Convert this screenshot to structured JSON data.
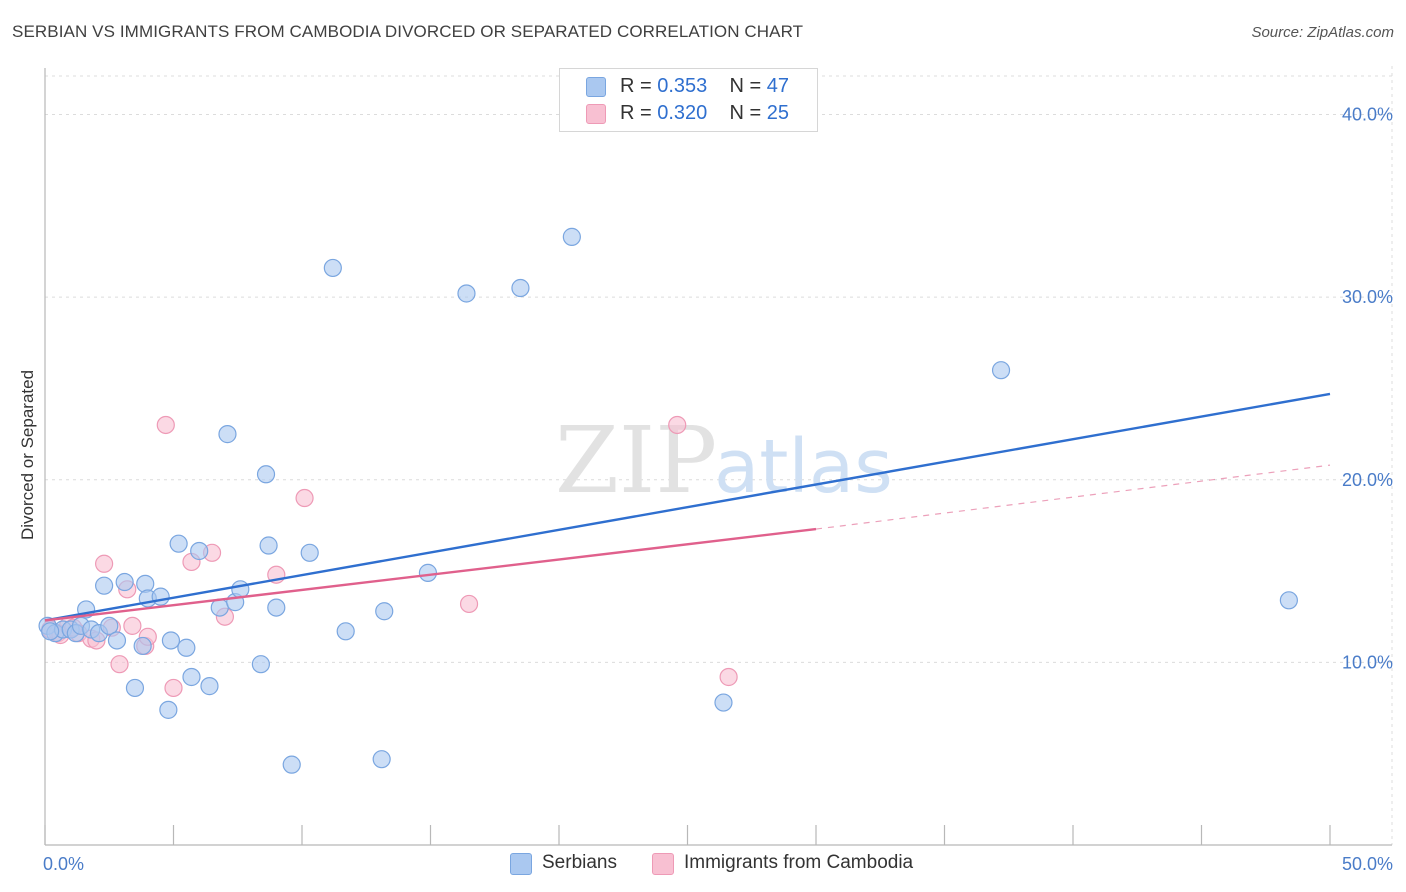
{
  "header": {
    "title": "SERBIAN VS IMMIGRANTS FROM CAMBODIA DIVORCED OR SEPARATED CORRELATION CHART",
    "source": "Source: ZipAtlas.com"
  },
  "watermark": {
    "zip": "ZIP",
    "atlas": "atlas"
  },
  "legend": {
    "rows": [
      {
        "r_label": "R =",
        "r_value": "0.353",
        "n_label": "N =",
        "n_value": "47"
      },
      {
        "r_label": "R =",
        "r_value": "0.320",
        "n_label": "N =",
        "n_value": "25"
      }
    ]
  },
  "bottom_legend": {
    "serbians": "Serbians",
    "cambodia": "Immigrants from Cambodia"
  },
  "colors": {
    "serbians_fill": "#aac8f0",
    "serbians_stroke": "#7aa6e0",
    "serbians_line": "#2f6fcf",
    "cambodia_fill": "#f8c0d2",
    "cambodia_stroke": "#ee9ab6",
    "cambodia_line": "#e0608c",
    "tick_text": "#4a7cc8",
    "grid": "#dcdcdc"
  },
  "chart_data": {
    "type": "scatter",
    "title": "SERBIAN VS IMMIGRANTS FROM CAMBODIA DIVORCED OR SEPARATED CORRELATION CHART",
    "xlabel": "",
    "ylabel": "Divorced or Separated",
    "xlim": [
      0,
      50
    ],
    "ylim": [
      0,
      42
    ],
    "x_tick_labels": [
      {
        "value": 0,
        "label": "0.0%"
      },
      {
        "value": 50,
        "label": "50.0%"
      }
    ],
    "y_tick_labels": [
      {
        "value": 10,
        "label": "10.0%"
      },
      {
        "value": 20,
        "label": "20.0%"
      },
      {
        "value": 30,
        "label": "30.0%"
      },
      {
        "value": 40,
        "label": "40.0%"
      }
    ],
    "grid": "horizontal dashed",
    "legend_position": "top-center",
    "series": [
      {
        "name": "Serbians",
        "points": [
          [
            0.1,
            12.0
          ],
          [
            0.4,
            11.6
          ],
          [
            0.7,
            11.8
          ],
          [
            1.0,
            11.8
          ],
          [
            1.2,
            11.6
          ],
          [
            1.4,
            12.0
          ],
          [
            1.6,
            12.9
          ],
          [
            1.8,
            11.8
          ],
          [
            2.1,
            11.6
          ],
          [
            2.3,
            14.2
          ],
          [
            2.5,
            12.0
          ],
          [
            2.8,
            11.2
          ],
          [
            3.1,
            14.4
          ],
          [
            3.5,
            8.6
          ],
          [
            3.9,
            14.3
          ],
          [
            4.0,
            13.5
          ],
          [
            3.8,
            10.9
          ],
          [
            4.5,
            13.6
          ],
          [
            4.8,
            7.4
          ],
          [
            4.9,
            11.2
          ],
          [
            5.2,
            16.5
          ],
          [
            5.5,
            10.8
          ],
          [
            5.7,
            9.2
          ],
          [
            6.0,
            16.1
          ],
          [
            6.4,
            8.7
          ],
          [
            6.8,
            13.0
          ],
          [
            7.1,
            22.5
          ],
          [
            7.4,
            13.3
          ],
          [
            7.6,
            14.0
          ],
          [
            8.4,
            9.9
          ],
          [
            8.6,
            20.3
          ],
          [
            8.7,
            16.4
          ],
          [
            9.0,
            13.0
          ],
          [
            9.6,
            4.4
          ],
          [
            10.3,
            16.0
          ],
          [
            11.2,
            31.6
          ],
          [
            11.7,
            11.7
          ],
          [
            13.2,
            12.8
          ],
          [
            13.1,
            4.7
          ],
          [
            14.9,
            14.9
          ],
          [
            16.4,
            30.2
          ],
          [
            18.5,
            30.5
          ],
          [
            20.5,
            33.3
          ],
          [
            26.4,
            7.8
          ],
          [
            37.2,
            26.0
          ],
          [
            48.4,
            13.4
          ],
          [
            0.2,
            11.7
          ]
        ]
      },
      {
        "name": "Immigrants from Cambodia",
        "points": [
          [
            0.2,
            11.8
          ],
          [
            0.5,
            11.6
          ],
          [
            0.9,
            12.0
          ],
          [
            1.3,
            11.6
          ],
          [
            1.8,
            11.3
          ],
          [
            2.0,
            11.2
          ],
          [
            2.3,
            15.4
          ],
          [
            2.6,
            11.9
          ],
          [
            2.9,
            9.9
          ],
          [
            3.2,
            14.0
          ],
          [
            3.4,
            12.0
          ],
          [
            3.9,
            10.9
          ],
          [
            4.0,
            11.4
          ],
          [
            4.7,
            23.0
          ],
          [
            5.0,
            8.6
          ],
          [
            5.7,
            15.5
          ],
          [
            6.5,
            16.0
          ],
          [
            7.0,
            12.5
          ],
          [
            9.0,
            14.8
          ],
          [
            10.1,
            19.0
          ],
          [
            16.5,
            13.2
          ],
          [
            24.6,
            23.0
          ],
          [
            26.6,
            9.2
          ],
          [
            0.6,
            11.5
          ],
          [
            1.1,
            11.9
          ]
        ]
      }
    ],
    "trend_lines": [
      {
        "series": "Serbians",
        "from": [
          0,
          12.3
        ],
        "to": [
          50,
          24.7
        ],
        "style": "solid"
      },
      {
        "series": "Immigrants from Cambodia",
        "from": [
          0,
          12.3
        ],
        "to": [
          30,
          17.3
        ],
        "style": "solid"
      },
      {
        "series": "Immigrants from Cambodia",
        "from": [
          30,
          17.3
        ],
        "to": [
          50,
          20.8
        ],
        "style": "dashed"
      }
    ]
  }
}
